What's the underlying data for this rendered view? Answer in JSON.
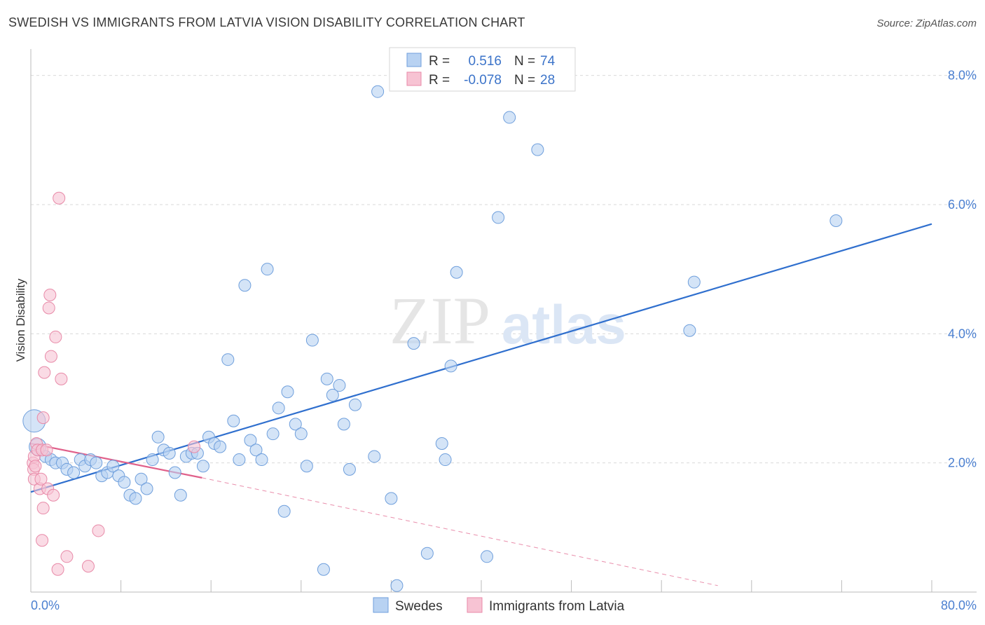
{
  "header": {
    "title": "SWEDISH VS IMMIGRANTS FROM LATVIA VISION DISABILITY CORRELATION CHART",
    "source": "Source: ZipAtlas.com"
  },
  "watermark": {
    "zip": "ZIP",
    "atlas": "atlas"
  },
  "legend_top": {
    "rows": [
      {
        "r_label": "R =",
        "r_value": "0.516",
        "n_label": "N =",
        "n_value": "74"
      },
      {
        "r_label": "R =",
        "r_value": "-0.078",
        "n_label": "N =",
        "n_value": "28"
      }
    ]
  },
  "colors": {
    "blue_fill": "#b8d2f2",
    "blue_stroke": "#6f9fdc",
    "blue_line": "#2f6fce",
    "pink_fill": "#f7c3d3",
    "pink_stroke": "#e88aa8",
    "pink_line": "#e0608a",
    "value_text": "#3b73c9",
    "grid": "#d9d9d9"
  },
  "chart_data": {
    "type": "scatter",
    "title": "SWEDISH VS IMMIGRANTS FROM LATVIA VISION DISABILITY CORRELATION CHART",
    "ylabel": "Vision Disability",
    "xlabel": "",
    "xlim": [
      0,
      80
    ],
    "ylim": [
      0,
      8.3
    ],
    "x_tick_labels": [
      "0.0%",
      "80.0%"
    ],
    "y_ticks": [
      2,
      4,
      6,
      8
    ],
    "y_tick_labels": [
      "2.0%",
      "4.0%",
      "6.0%",
      "8.0%"
    ],
    "legend": [
      "Swedes",
      "Immigrants from Latvia"
    ],
    "series": [
      {
        "name": "Swedes",
        "r": 0.516,
        "n": 74,
        "trend": {
          "x": [
            0,
            80
          ],
          "y": [
            1.55,
            5.7
          ]
        },
        "points": [
          {
            "x": 0.3,
            "y": 2.65,
            "big": 2
          },
          {
            "x": 0.6,
            "y": 2.25,
            "big": 1
          },
          {
            "x": 1.3,
            "y": 2.1
          },
          {
            "x": 1.8,
            "y": 2.05
          },
          {
            "x": 2.2,
            "y": 2.0
          },
          {
            "x": 2.8,
            "y": 2.0
          },
          {
            "x": 3.2,
            "y": 1.9
          },
          {
            "x": 3.8,
            "y": 1.85
          },
          {
            "x": 4.4,
            "y": 2.05
          },
          {
            "x": 4.8,
            "y": 1.95
          },
          {
            "x": 5.3,
            "y": 2.05
          },
          {
            "x": 5.8,
            "y": 2.0
          },
          {
            "x": 6.3,
            "y": 1.8
          },
          {
            "x": 6.8,
            "y": 1.85
          },
          {
            "x": 7.3,
            "y": 1.95
          },
          {
            "x": 7.8,
            "y": 1.8
          },
          {
            "x": 8.3,
            "y": 1.7
          },
          {
            "x": 8.8,
            "y": 1.5
          },
          {
            "x": 9.3,
            "y": 1.45
          },
          {
            "x": 9.8,
            "y": 1.75
          },
          {
            "x": 10.3,
            "y": 1.6
          },
          {
            "x": 10.8,
            "y": 2.05
          },
          {
            "x": 11.3,
            "y": 2.4
          },
          {
            "x": 11.8,
            "y": 2.2
          },
          {
            "x": 12.3,
            "y": 2.15
          },
          {
            "x": 12.8,
            "y": 1.85
          },
          {
            "x": 13.3,
            "y": 1.5
          },
          {
            "x": 13.8,
            "y": 2.1
          },
          {
            "x": 14.3,
            "y": 2.15
          },
          {
            "x": 14.8,
            "y": 2.15
          },
          {
            "x": 15.3,
            "y": 1.95
          },
          {
            "x": 15.8,
            "y": 2.4
          },
          {
            "x": 16.3,
            "y": 2.3
          },
          {
            "x": 16.8,
            "y": 2.25
          },
          {
            "x": 17.5,
            "y": 3.6
          },
          {
            "x": 18.0,
            "y": 2.65
          },
          {
            "x": 18.5,
            "y": 2.05
          },
          {
            "x": 19.0,
            "y": 4.75
          },
          {
            "x": 19.5,
            "y": 2.35
          },
          {
            "x": 20.0,
            "y": 2.2
          },
          {
            "x": 20.5,
            "y": 2.05
          },
          {
            "x": 21.0,
            "y": 5.0
          },
          {
            "x": 21.5,
            "y": 2.45
          },
          {
            "x": 22.0,
            "y": 2.85
          },
          {
            "x": 22.5,
            "y": 1.25
          },
          {
            "x": 22.8,
            "y": 3.1
          },
          {
            "x": 23.5,
            "y": 2.6
          },
          {
            "x": 24.0,
            "y": 2.45
          },
          {
            "x": 24.5,
            "y": 1.95
          },
          {
            "x": 25.0,
            "y": 3.9
          },
          {
            "x": 26.0,
            "y": 0.35
          },
          {
            "x": 26.3,
            "y": 3.3
          },
          {
            "x": 26.8,
            "y": 3.05
          },
          {
            "x": 27.4,
            "y": 3.2
          },
          {
            "x": 27.8,
            "y": 2.6
          },
          {
            "x": 28.3,
            "y": 1.9
          },
          {
            "x": 28.8,
            "y": 2.9
          },
          {
            "x": 30.5,
            "y": 2.1
          },
          {
            "x": 30.8,
            "y": 7.75
          },
          {
            "x": 32.0,
            "y": 1.45
          },
          {
            "x": 32.5,
            "y": 0.1
          },
          {
            "x": 34.0,
            "y": 3.85
          },
          {
            "x": 35.2,
            "y": 0.6
          },
          {
            "x": 36.5,
            "y": 2.3
          },
          {
            "x": 36.8,
            "y": 2.05
          },
          {
            "x": 37.3,
            "y": 3.5
          },
          {
            "x": 37.8,
            "y": 4.95
          },
          {
            "x": 40.5,
            "y": 0.55
          },
          {
            "x": 41.5,
            "y": 5.8
          },
          {
            "x": 42.5,
            "y": 7.35
          },
          {
            "x": 45.0,
            "y": 6.85
          },
          {
            "x": 58.5,
            "y": 4.05
          },
          {
            "x": 58.9,
            "y": 4.8
          },
          {
            "x": 71.5,
            "y": 5.75
          }
        ]
      },
      {
        "name": "Immigrants from Latvia",
        "r": -0.078,
        "n": 28,
        "trend": {
          "x": [
            0,
            15.2
          ],
          "y": [
            2.3,
            1.77
          ]
        },
        "trend_extended": {
          "x": [
            15.2,
            61.0
          ],
          "y": [
            1.77,
            0.1
          ]
        },
        "points": [
          {
            "x": 0.2,
            "y": 2.0
          },
          {
            "x": 0.25,
            "y": 1.9
          },
          {
            "x": 0.3,
            "y": 1.75
          },
          {
            "x": 0.3,
            "y": 2.1
          },
          {
            "x": 0.4,
            "y": 1.95
          },
          {
            "x": 0.5,
            "y": 2.3
          },
          {
            "x": 0.6,
            "y": 2.2
          },
          {
            "x": 0.8,
            "y": 1.6
          },
          {
            "x": 0.9,
            "y": 1.75
          },
          {
            "x": 1.0,
            "y": 2.2
          },
          {
            "x": 1.1,
            "y": 2.7
          },
          {
            "x": 1.0,
            "y": 0.8
          },
          {
            "x": 1.1,
            "y": 1.3
          },
          {
            "x": 1.2,
            "y": 3.4
          },
          {
            "x": 1.4,
            "y": 2.2
          },
          {
            "x": 1.5,
            "y": 1.6
          },
          {
            "x": 1.6,
            "y": 4.4
          },
          {
            "x": 1.7,
            "y": 4.6
          },
          {
            "x": 1.8,
            "y": 3.65
          },
          {
            "x": 2.0,
            "y": 1.5
          },
          {
            "x": 2.2,
            "y": 3.95
          },
          {
            "x": 2.4,
            "y": 0.35
          },
          {
            "x": 2.5,
            "y": 6.1
          },
          {
            "x": 2.7,
            "y": 3.3
          },
          {
            "x": 3.2,
            "y": 0.55
          },
          {
            "x": 5.1,
            "y": 0.4
          },
          {
            "x": 6.0,
            "y": 0.95
          },
          {
            "x": 14.5,
            "y": 2.25
          }
        ]
      }
    ]
  }
}
